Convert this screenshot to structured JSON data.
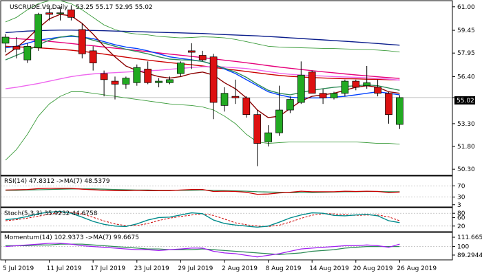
{
  "chart_data": {
    "type": "candlestick",
    "title": "USCRUDE.V9,Daily",
    "ohlc_text": "53.25 55.17 52.95 55.02",
    "last_price_label": "55.02",
    "price_ticks": [
      "61.00",
      "59.45",
      "57.95",
      "56.40",
      "55.02",
      "53.30",
      "51.80",
      "50.30"
    ],
    "price_range": [
      49.9,
      61.4
    ],
    "x_date_labels": [
      "5 Jul 2019",
      "11 Jul 2019",
      "17 Jul 2019",
      "23 Jul 2019",
      "29 Jul 2019",
      "2 Aug 2019",
      "8 Aug 2019",
      "14 Aug 2019",
      "20 Aug 2019",
      "26 Aug 2019"
    ],
    "x_label_indices": [
      0,
      4,
      8,
      12,
      16,
      20,
      24,
      28,
      32,
      36
    ],
    "candles": [
      {
        "o": 58.6,
        "h": 59.2,
        "l": 58.0,
        "c": 59.0
      },
      {
        "o": 58.4,
        "h": 59.0,
        "l": 57.6,
        "c": 58.2
      },
      {
        "o": 57.5,
        "h": 58.6,
        "l": 57.3,
        "c": 58.4
      },
      {
        "o": 58.3,
        "h": 60.6,
        "l": 58.1,
        "c": 60.5
      },
      {
        "o": 60.6,
        "h": 60.9,
        "l": 60.1,
        "c": 60.5
      },
      {
        "o": 60.6,
        "h": 61.0,
        "l": 60.1,
        "c": 60.6
      },
      {
        "o": 60.8,
        "h": 61.1,
        "l": 60.1,
        "c": 60.3
      },
      {
        "o": 59.5,
        "h": 59.9,
        "l": 57.6,
        "c": 57.9
      },
      {
        "o": 58.1,
        "h": 58.4,
        "l": 56.8,
        "c": 57.3
      },
      {
        "o": 56.6,
        "h": 56.8,
        "l": 55.1,
        "c": 56.2
      },
      {
        "o": 56.1,
        "h": 56.4,
        "l": 54.9,
        "c": 55.9
      },
      {
        "o": 55.9,
        "h": 56.4,
        "l": 55.6,
        "c": 56.3
      },
      {
        "o": 56.0,
        "h": 57.2,
        "l": 55.8,
        "c": 57.0
      },
      {
        "o": 56.9,
        "h": 57.4,
        "l": 55.9,
        "c": 56.0
      },
      {
        "o": 56.0,
        "h": 56.3,
        "l": 55.7,
        "c": 56.1
      },
      {
        "o": 56.0,
        "h": 56.4,
        "l": 55.9,
        "c": 56.2
      },
      {
        "o": 56.6,
        "h": 57.4,
        "l": 56.4,
        "c": 57.3
      },
      {
        "o": 58.1,
        "h": 58.6,
        "l": 56.9,
        "c": 58.0
      },
      {
        "o": 57.8,
        "h": 58.1,
        "l": 57.4,
        "c": 57.5
      },
      {
        "o": 57.7,
        "h": 57.9,
        "l": 53.6,
        "c": 54.7
      },
      {
        "o": 54.5,
        "h": 55.7,
        "l": 54.1,
        "c": 55.3
      },
      {
        "o": 55.1,
        "h": 56.2,
        "l": 54.6,
        "c": 55.0
      },
      {
        "o": 55.0,
        "h": 55.1,
        "l": 53.7,
        "c": 53.9
      },
      {
        "o": 53.9,
        "h": 54.2,
        "l": 50.5,
        "c": 52.0
      },
      {
        "o": 52.1,
        "h": 53.2,
        "l": 51.8,
        "c": 52.7
      },
      {
        "o": 52.7,
        "h": 55.8,
        "l": 52.5,
        "c": 54.2
      },
      {
        "o": 54.2,
        "h": 55.1,
        "l": 54.0,
        "c": 54.9
      },
      {
        "o": 54.7,
        "h": 57.4,
        "l": 54.6,
        "c": 56.5
      },
      {
        "o": 56.7,
        "h": 56.8,
        "l": 55.3,
        "c": 55.3
      },
      {
        "o": 55.3,
        "h": 55.6,
        "l": 54.6,
        "c": 55.0
      },
      {
        "o": 55.0,
        "h": 55.4,
        "l": 54.9,
        "c": 55.3
      },
      {
        "o": 55.3,
        "h": 56.2,
        "l": 55.1,
        "c": 56.1
      },
      {
        "o": 56.1,
        "h": 56.2,
        "l": 55.5,
        "c": 55.7
      },
      {
        "o": 55.8,
        "h": 57.1,
        "l": 55.6,
        "c": 56.0
      },
      {
        "o": 55.7,
        "h": 56.2,
        "l": 55.1,
        "c": 55.3
      },
      {
        "o": 55.3,
        "h": 55.4,
        "l": 53.3,
        "c": 53.9
      },
      {
        "o": 53.25,
        "h": 55.17,
        "l": 52.95,
        "c": 55.02
      }
    ],
    "overlay_lines": [
      {
        "color": "#0b1e8c",
        "values": [
          59.3,
          59.35,
          59.4,
          59.42,
          59.45,
          59.46,
          59.46,
          59.45,
          59.44,
          59.42,
          59.4,
          59.38,
          59.36,
          59.34,
          59.32,
          59.3,
          59.28,
          59.26,
          59.24,
          59.2,
          59.17,
          59.14,
          59.11,
          59.08,
          59.04,
          59.0,
          58.95,
          58.91,
          58.86,
          58.82,
          58.77,
          58.73,
          58.68,
          58.63,
          58.58,
          58.52,
          58.47
        ]
      },
      {
        "color": "#e6007a",
        "values": [
          58.95,
          58.9,
          58.85,
          58.8,
          58.72,
          58.65,
          58.58,
          58.5,
          58.43,
          58.35,
          58.27,
          58.2,
          58.12,
          58.04,
          57.96,
          57.88,
          57.81,
          57.73,
          57.65,
          57.57,
          57.48,
          57.4,
          57.31,
          57.22,
          57.12,
          57.03,
          56.95,
          56.87,
          56.79,
          56.72,
          56.65,
          56.58,
          56.51,
          56.45,
          56.39,
          56.33,
          56.28
        ]
      },
      {
        "color": "#cc0000",
        "values": [
          58.4,
          58.36,
          58.33,
          58.3,
          58.25,
          58.2,
          58.14,
          58.06,
          57.98,
          57.88,
          57.78,
          57.68,
          57.58,
          57.49,
          57.4,
          57.32,
          57.25,
          57.18,
          57.1,
          57.0,
          56.92,
          56.83,
          56.74,
          56.65,
          56.56,
          56.48,
          56.42,
          56.38,
          56.34,
          56.31,
          56.28,
          56.26,
          56.25,
          56.23,
          56.22,
          56.2,
          56.18
        ]
      },
      {
        "color": "#ee66ee",
        "values": [
          55.6,
          55.7,
          55.82,
          55.95,
          56.1,
          56.25,
          56.4,
          56.5,
          56.58,
          56.63,
          56.66,
          56.7,
          56.74,
          56.78,
          56.82,
          56.88,
          56.94,
          57.0,
          57.05,
          57.06,
          57.03,
          56.98,
          56.93,
          56.84,
          56.73,
          56.62,
          56.55,
          56.5,
          56.47,
          56.44,
          56.4,
          56.38,
          56.35,
          56.32,
          56.28,
          56.23,
          56.17
        ]
      },
      {
        "color": "#0040ff",
        "values": [
          58.3,
          58.4,
          58.6,
          58.8,
          58.9,
          59.0,
          59.05,
          59.0,
          58.9,
          58.7,
          58.5,
          58.35,
          58.25,
          58.1,
          57.9,
          57.7,
          57.6,
          57.5,
          57.4,
          57.2,
          56.9,
          56.6,
          56.2,
          55.8,
          55.4,
          55.2,
          55.05,
          55.0,
          55.0,
          55.0,
          55.05,
          55.1,
          55.2,
          55.3,
          55.4,
          55.3,
          55.2
        ]
      },
      {
        "color": "#2e8b57",
        "values": [
          57.5,
          57.8,
          58.1,
          58.5,
          58.8,
          59.0,
          59.1,
          59.0,
          58.8,
          58.6,
          58.4,
          58.2,
          58.05,
          57.9,
          57.7,
          57.55,
          57.5,
          57.48,
          57.4,
          57.2,
          56.95,
          56.7,
          56.35,
          55.9,
          55.5,
          55.3,
          55.2,
          55.35,
          55.5,
          55.6,
          55.7,
          55.75,
          55.8,
          55.85,
          55.8,
          55.65,
          55.5
        ]
      },
      {
        "color": "#8b0000",
        "values": [
          57.8,
          58.3,
          58.9,
          59.6,
          60.2,
          60.5,
          60.4,
          59.9,
          59.2,
          58.4,
          57.7,
          57.1,
          56.8,
          56.6,
          56.4,
          56.3,
          56.4,
          56.6,
          56.7,
          56.5,
          56.0,
          55.6,
          55.0,
          54.2,
          53.7,
          53.8,
          54.3,
          54.8,
          55.1,
          55.2,
          55.3,
          55.5,
          55.7,
          55.8,
          55.7,
          55.4,
          55.3
        ]
      }
    ],
    "bollinger": {
      "color": "#3a9b3a",
      "upper": [
        60.0,
        60.3,
        60.8,
        61.2,
        61.4,
        61.4,
        61.2,
        60.8,
        60.3,
        59.8,
        59.5,
        59.3,
        59.2,
        59.15,
        59.05,
        59.0,
        58.95,
        58.98,
        59.02,
        59.0,
        58.95,
        58.85,
        58.7,
        58.55,
        58.4,
        58.35,
        58.32,
        58.3,
        58.28,
        58.26,
        58.25,
        58.22,
        58.2,
        58.18,
        58.15,
        58.1,
        58.02
      ],
      "lower": [
        50.9,
        51.6,
        52.6,
        53.8,
        54.6,
        55.1,
        55.4,
        55.4,
        55.3,
        55.2,
        55.1,
        55.0,
        54.9,
        54.8,
        54.7,
        54.6,
        54.55,
        54.5,
        54.4,
        54.2,
        53.8,
        53.3,
        52.6,
        52.1,
        52.0,
        52.05,
        52.1,
        52.1,
        52.1,
        52.1,
        52.1,
        52.1,
        52.1,
        52.05,
        52.0,
        52.0,
        51.95
      ]
    },
    "rsi": {
      "label": "RSI(14) 47.8312 ->MA(7) 48.5379",
      "ticks": [
        "70",
        "30",
        "3"
      ],
      "range": [
        0,
        100
      ],
      "rsi_color": "#cc0000",
      "ma_color": "#2e8b57",
      "values": [
        55,
        56,
        57,
        60,
        61,
        61,
        61,
        58,
        56,
        54,
        53,
        53,
        54,
        53,
        53,
        53,
        55,
        57,
        57,
        50,
        51,
        50,
        47,
        40,
        41,
        45,
        47,
        51,
        49,
        49,
        49,
        51,
        50,
        51,
        50,
        46,
        48
      ],
      "ma": [
        54,
        54,
        55,
        56,
        57,
        58,
        59,
        59,
        59,
        58,
        57,
        56,
        55,
        55,
        54,
        54,
        54,
        54,
        55,
        54,
        53,
        52,
        51,
        49,
        48,
        47,
        46,
        46,
        46,
        47,
        48,
        49,
        49,
        50,
        50,
        49,
        49
      ]
    },
    "stoch": {
      "label": "Stoch(5,3,3) 35.9232 44.6758",
      "ticks": [
        "80",
        "60",
        "20"
      ],
      "range": [
        0,
        100
      ],
      "k_color": "#008b8b",
      "d_color": "#cc0000",
      "k": [
        50,
        55,
        65,
        78,
        85,
        88,
        80,
        62,
        42,
        28,
        20,
        18,
        30,
        48,
        60,
        62,
        72,
        82,
        78,
        48,
        32,
        25,
        20,
        15,
        20,
        38,
        58,
        72,
        82,
        80,
        70,
        68,
        72,
        75,
        68,
        45,
        36
      ],
      "d": [
        45,
        50,
        57,
        66,
        76,
        84,
        84,
        77,
        61,
        44,
        30,
        22,
        22,
        32,
        46,
        57,
        65,
        72,
        77,
        70,
        53,
        35,
        26,
        20,
        18,
        24,
        39,
        56,
        71,
        78,
        77,
        73,
        70,
        72,
        72,
        63,
        45
      ]
    },
    "momentum": {
      "label": "Momentum(14) 102.9373 ->MA(7) 99.6675",
      "ticks": [
        "111.6654",
        "100",
        "89.2944"
      ],
      "range": [
        85,
        116
      ],
      "mom_color": "#a020f0",
      "ma_color": "#2e8b57",
      "values": [
        100,
        101,
        102,
        103,
        104,
        104,
        103,
        101,
        100,
        99,
        98,
        97,
        96,
        96,
        95,
        96,
        97,
        98,
        98,
        94,
        92,
        91,
        89,
        87,
        89,
        91,
        94,
        97,
        98,
        99,
        100,
        101,
        101,
        102,
        101,
        99,
        103
      ],
      "ma": [
        101,
        101,
        101,
        102,
        102,
        103,
        103,
        103,
        102,
        101,
        100,
        99,
        98,
        97,
        97,
        96,
        96,
        96,
        97,
        96,
        95,
        94,
        93,
        92,
        91,
        90,
        91,
        92,
        94,
        95,
        96,
        98,
        99,
        100,
        100,
        100,
        100
      ]
    }
  }
}
